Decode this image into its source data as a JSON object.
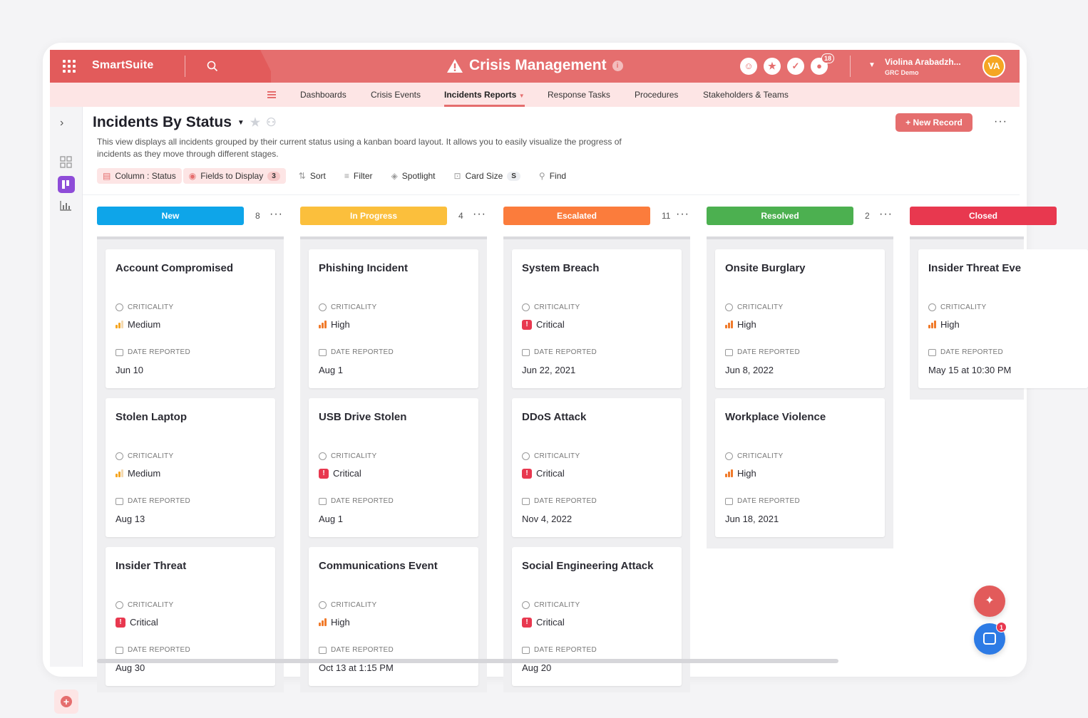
{
  "topbar": {
    "brand": "SmartSuite",
    "title": "Crisis Management",
    "notification_count": "18",
    "user_name": "Violina Arabadzh...",
    "user_org": "GRC Demo",
    "avatar_initials": "VA",
    "brand_color": "#e56e6e"
  },
  "nav": {
    "items": [
      "Dashboards",
      "Crisis Events",
      "Incidents Reports",
      "Response Tasks",
      "Procedures",
      "Stakeholders & Teams"
    ],
    "active": "Incidents Reports"
  },
  "view": {
    "title": "Incidents By Status",
    "description": "This view displays all incidents grouped by their current status using a kanban board layout. It allows you to easily visualize the progress of incidents as they move through different stages.",
    "new_record_label": "New Record"
  },
  "toolbar": {
    "column_label": "Column : Status",
    "fields_label": "Fields to Display",
    "fields_count": "3",
    "sort_label": "Sort",
    "filter_label": "Filter",
    "spotlight_label": "Spotlight",
    "card_size_label": "Card Size",
    "card_size_value": "S",
    "find_label": "Find"
  },
  "labels": {
    "criticality": "CRITICALITY",
    "date_reported": "DATE REPORTED"
  },
  "columns": [
    {
      "name": "New",
      "count": "8",
      "color": "#0ea5e9",
      "cards": [
        {
          "title": "Account Compromised",
          "criticality": "Medium",
          "date": "Jun 10"
        },
        {
          "title": "Stolen Laptop",
          "criticality": "Medium",
          "date": "Aug 13"
        },
        {
          "title": "Insider Threat",
          "criticality": "Critical",
          "date": "Aug 30"
        }
      ]
    },
    {
      "name": "In Progress",
      "count": "4",
      "color": "#fbbf3c",
      "cards": [
        {
          "title": "Phishing Incident",
          "criticality": "High",
          "date": "Aug 1"
        },
        {
          "title": "USB Drive Stolen",
          "criticality": "Critical",
          "date": "Aug 1"
        },
        {
          "title": "Communications Event",
          "criticality": "High",
          "date": "Oct 13 at 1:15 PM"
        }
      ]
    },
    {
      "name": "Escalated",
      "count": "11",
      "color": "#fb7c3c",
      "cards": [
        {
          "title": "System Breach",
          "criticality": "Critical",
          "date": "Jun 22, 2021"
        },
        {
          "title": "DDoS Attack",
          "criticality": "Critical",
          "date": "Nov 4, 2022"
        },
        {
          "title": "Social Engineering Attack",
          "criticality": "Critical",
          "date": "Aug 20"
        }
      ]
    },
    {
      "name": "Resolved",
      "count": "2",
      "color": "#4cb050",
      "cards": [
        {
          "title": "Onsite Burglary",
          "criticality": "High",
          "date": "Jun 8, 2022"
        },
        {
          "title": "Workplace Violence",
          "criticality": "High",
          "date": "Jun 18, 2021"
        }
      ]
    },
    {
      "name": "Closed",
      "count": "",
      "color": "#e8384f",
      "cards": [
        {
          "title": "Insider Threat Eve",
          "criticality": "High",
          "date": "May 15 at 10:30 PM"
        }
      ]
    }
  ]
}
